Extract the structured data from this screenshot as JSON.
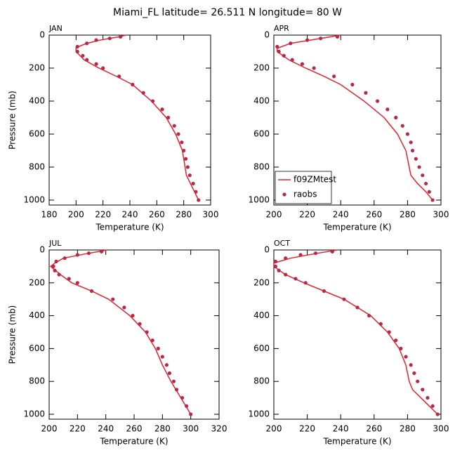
{
  "title": "Miami_FL  latitude= 26.511 N longitude= 80 W",
  "chart_data": [
    {
      "type": "line",
      "title": "JAN",
      "xlabel": "Temperature (K)",
      "ylabel": "Pressure (mb)",
      "xlim": [
        180,
        300
      ],
      "xticks": [
        180,
        200,
        220,
        240,
        260,
        280,
        300
      ],
      "ylim": [
        1030,
        0
      ],
      "yticks": [
        0,
        200,
        400,
        600,
        800,
        1000
      ],
      "series": [
        {
          "color": "#e8212a",
          "style": "line",
          "x": [
            237,
            232,
            218,
            208,
            200,
            200,
            206,
            217,
            230,
            242,
            256,
            267,
            274,
            279,
            281,
            282,
            285,
            288,
            291
          ],
          "y": [
            0,
            10,
            30,
            50,
            75,
            100,
            150,
            200,
            250,
            300,
            400,
            500,
            600,
            700,
            800,
            850,
            900,
            950,
            1000
          ]
        },
        {
          "color": "#b5294e",
          "style": "markers",
          "x": [
            233,
            225,
            215,
            208,
            201,
            201,
            205,
            208,
            215,
            220,
            232,
            242,
            250,
            257,
            264,
            268.5,
            273,
            276,
            278.5,
            280,
            281.5,
            283,
            284.5,
            287,
            289,
            291
          ],
          "y": [
            10,
            20,
            30,
            50,
            70,
            100,
            125,
            150,
            175,
            200,
            250,
            300,
            350,
            400,
            450,
            500,
            550,
            600,
            650,
            700,
            750,
            800,
            850,
            900,
            950,
            1000
          ]
        }
      ]
    },
    {
      "type": "line",
      "title": "APR",
      "xlabel": "Temperature (K)",
      "xlim": [
        200,
        300
      ],
      "xticks": [
        200,
        220,
        240,
        260,
        280,
        300
      ],
      "ylim": [
        1030,
        0
      ],
      "yticks": [
        0,
        200,
        400,
        600,
        800,
        1000
      ],
      "legend": "lower left",
      "series": [
        {
          "name": "f09ZMtest",
          "color": "#e8212a",
          "style": "line",
          "x": [
            240,
            228,
            210,
            202,
            202,
            209,
            219,
            230,
            240,
            254,
            266,
            274,
            279,
            281,
            282,
            286,
            291,
            295
          ],
          "y": [
            0,
            20,
            50,
            80,
            100,
            150,
            200,
            250,
            300,
            400,
            500,
            600,
            700,
            800,
            850,
            900,
            950,
            1000
          ]
        },
        {
          "name": "raobs",
          "color": "#b5294e",
          "style": "markers",
          "x": [
            238,
            228,
            220,
            210,
            202,
            203,
            206,
            211,
            217,
            224,
            236,
            247,
            255,
            262,
            268,
            273,
            277,
            280,
            282,
            283,
            285,
            287,
            289,
            291,
            293,
            295
          ],
          "y": [
            10,
            20,
            30,
            50,
            70,
            100,
            125,
            150,
            175,
            200,
            250,
            300,
            350,
            400,
            450,
            500,
            550,
            600,
            650,
            700,
            750,
            800,
            850,
            900,
            950,
            1000
          ]
        }
      ]
    },
    {
      "type": "line",
      "title": "JUL",
      "xlabel": "Temperature (K)",
      "ylabel": "Pressure (mb)",
      "xlim": [
        200,
        320
      ],
      "xticks": [
        200,
        220,
        240,
        260,
        280,
        300,
        320
      ],
      "ylim": [
        1030,
        0
      ],
      "yticks": [
        0,
        200,
        400,
        600,
        800,
        1000
      ],
      "series": [
        {
          "color": "#e8212a",
          "style": "line",
          "x": [
            241,
            228,
            210,
            204,
            201,
            208,
            216,
            230,
            242,
            257,
            268,
            275,
            280,
            286,
            293,
            300
          ],
          "y": [
            0,
            20,
            50,
            80,
            100,
            150,
            200,
            250,
            300,
            400,
            500,
            600,
            700,
            800,
            900,
            1000
          ]
        },
        {
          "color": "#b5294e",
          "style": "markers",
          "x": [
            237,
            228,
            220,
            211,
            205,
            203,
            204,
            207,
            214,
            220,
            230,
            245,
            253,
            259,
            264,
            269,
            273,
            277,
            280,
            283,
            285,
            288,
            290,
            294,
            297,
            300
          ],
          "y": [
            10,
            20,
            30,
            50,
            70,
            100,
            125,
            150,
            175,
            200,
            250,
            300,
            350,
            400,
            450,
            500,
            550,
            600,
            650,
            700,
            750,
            800,
            850,
            900,
            950,
            1000
          ]
        }
      ]
    },
    {
      "type": "line",
      "title": "OCT",
      "xlabel": "Temperature (K)",
      "xlim": [
        200,
        300
      ],
      "xticks": [
        200,
        220,
        240,
        260,
        280,
        300
      ],
      "ylim": [
        1030,
        0
      ],
      "yticks": [
        0,
        200,
        400,
        600,
        800,
        1000
      ],
      "series": [
        {
          "color": "#e8212a",
          "style": "line",
          "x": [
            238,
            226,
            210,
            200,
            200,
            207,
            218,
            230,
            242,
            258,
            268,
            275,
            279,
            281,
            283,
            288,
            293,
            298
          ],
          "y": [
            0,
            20,
            50,
            80,
            100,
            150,
            200,
            250,
            300,
            400,
            500,
            600,
            700,
            800,
            850,
            900,
            950,
            1000
          ]
        },
        {
          "color": "#b5294e",
          "style": "markers",
          "x": [
            235,
            225,
            216,
            207,
            201,
            201,
            203,
            207,
            213,
            219,
            230,
            242,
            250,
            257,
            264,
            269,
            273,
            276,
            279,
            282,
            284,
            286,
            289,
            292,
            295,
            298
          ],
          "y": [
            10,
            20,
            30,
            50,
            70,
            100,
            125,
            150,
            175,
            200,
            250,
            300,
            350,
            400,
            450,
            500,
            550,
            600,
            650,
            700,
            750,
            800,
            850,
            900,
            950,
            1000
          ]
        }
      ]
    }
  ]
}
